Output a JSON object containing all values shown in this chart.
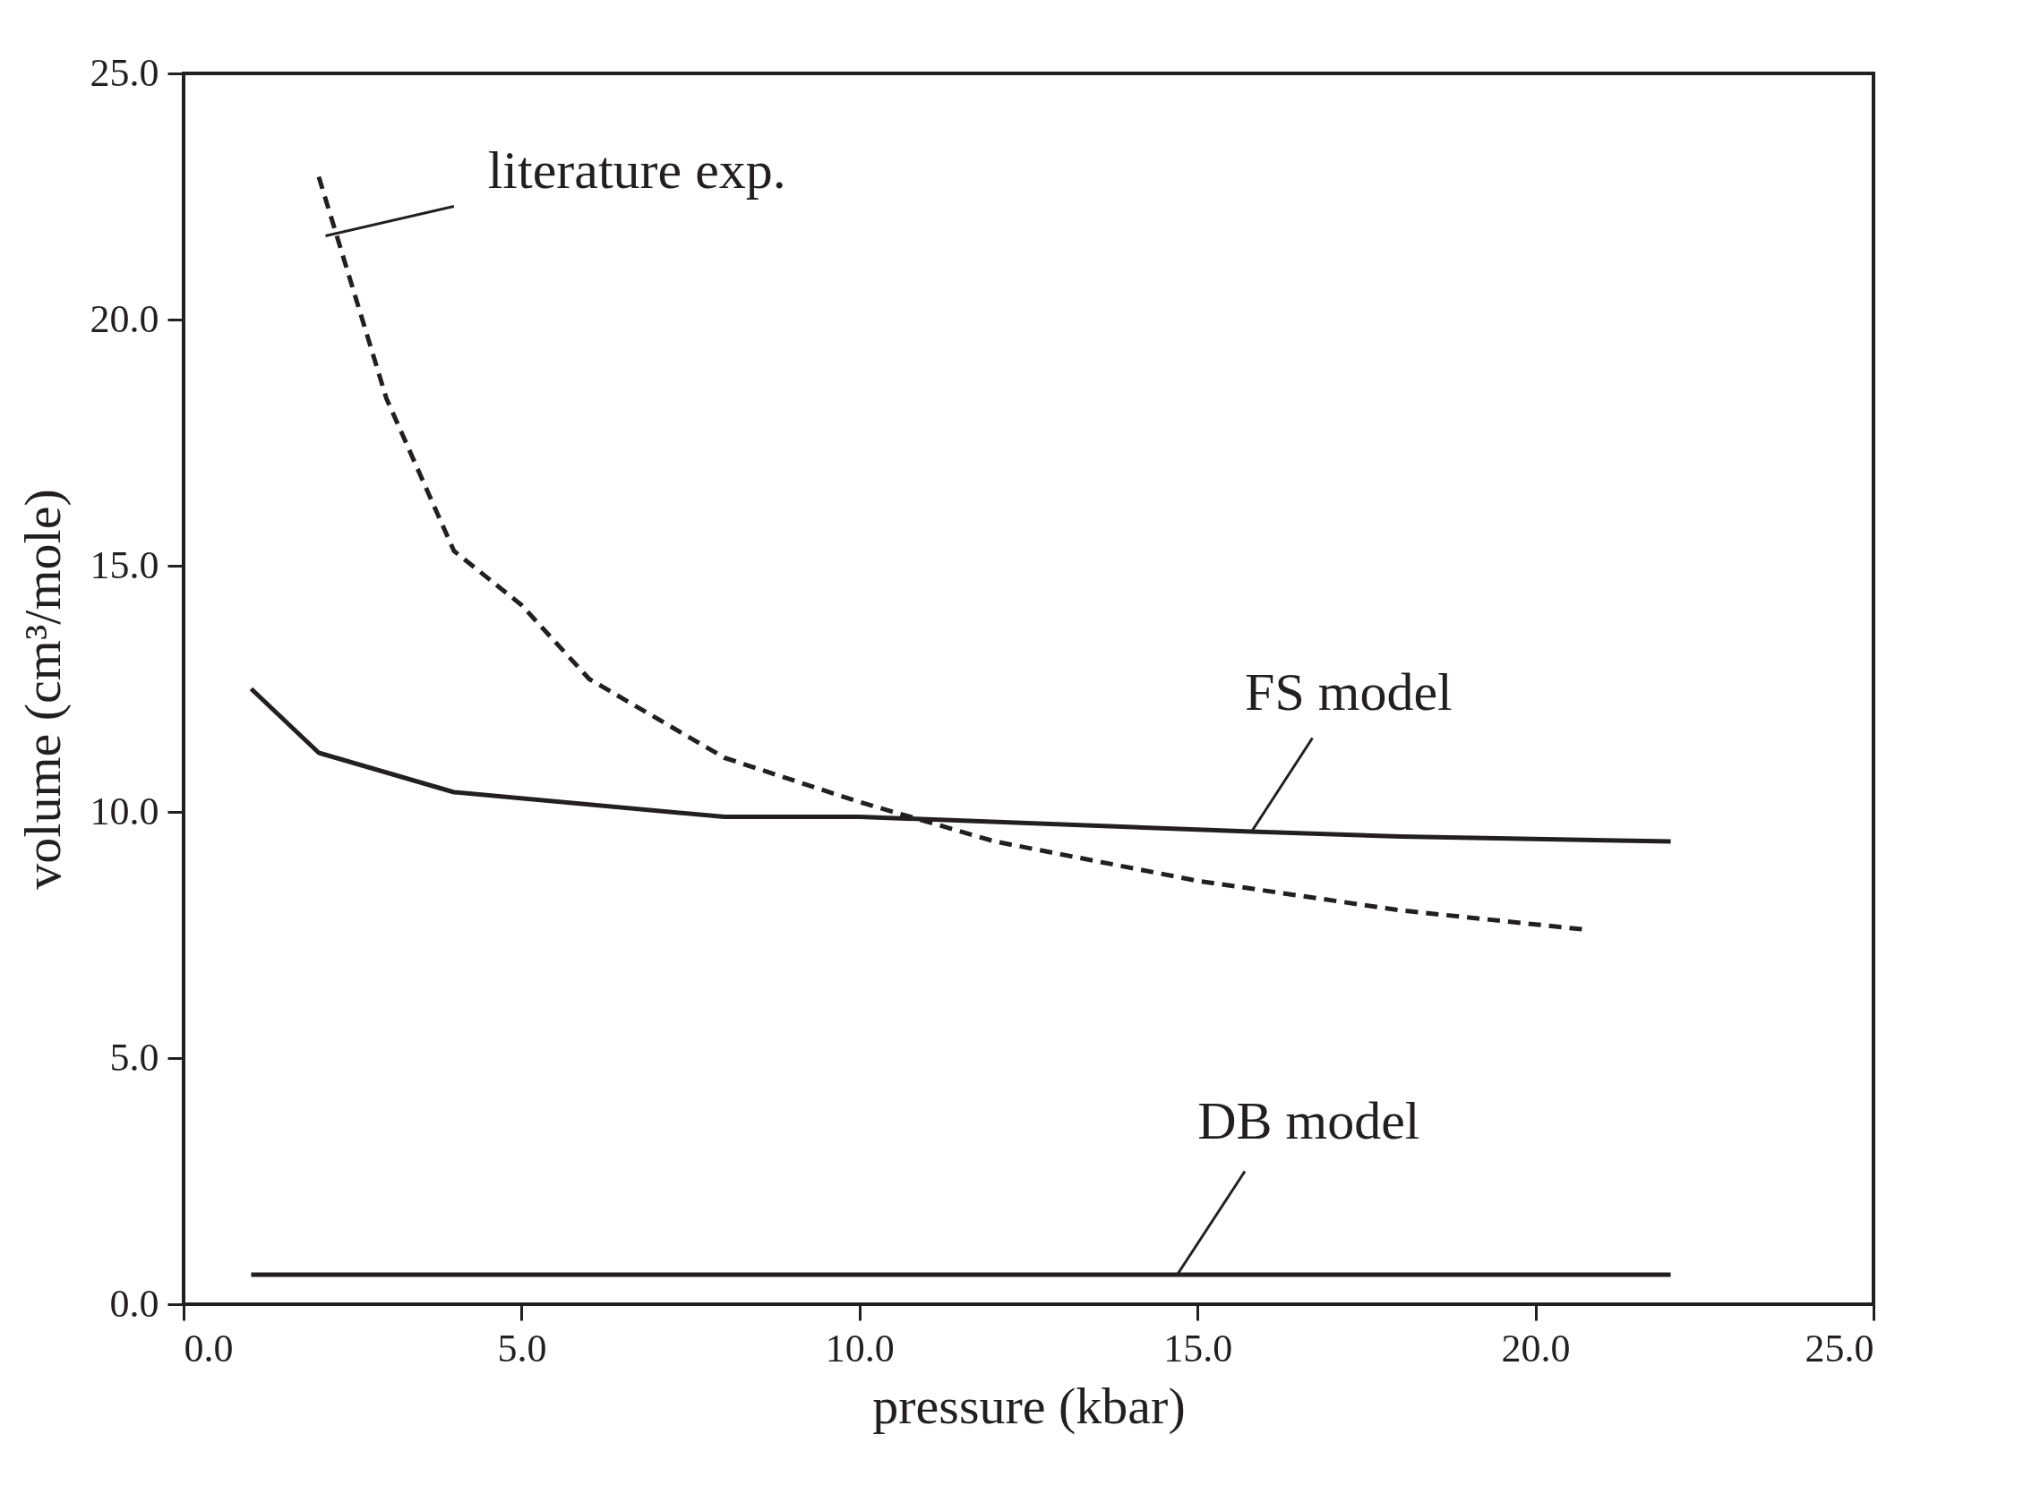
{
  "chart_data": {
    "type": "line",
    "xlabel": "pressure (kbar)",
    "ylabel": "volume (cm³/mole)",
    "xlim": [
      0,
      25
    ],
    "ylim": [
      0,
      25
    ],
    "xticks": [
      {
        "value": 0,
        "label": "0.0"
      },
      {
        "value": 5,
        "label": "5.0"
      },
      {
        "value": 10,
        "label": "10.0"
      },
      {
        "value": 15,
        "label": "15.0"
      },
      {
        "value": 20,
        "label": "20.0"
      },
      {
        "value": 25,
        "label": "25.0"
      }
    ],
    "yticks": [
      {
        "value": 0,
        "label": "0.0"
      },
      {
        "value": 5,
        "label": "5.0"
      },
      {
        "value": 10,
        "label": "10.0"
      },
      {
        "value": 15,
        "label": "15.0"
      },
      {
        "value": 20,
        "label": "20.0"
      },
      {
        "value": 25,
        "label": "25.0"
      }
    ],
    "grid": false,
    "series": [
      {
        "name": "literature exp.",
        "color": "#231f20",
        "line_style": "dashed",
        "x": [
          2,
          3,
          4,
          5,
          6,
          8,
          10,
          12,
          15,
          18,
          20.8
        ],
        "values": [
          22.9,
          18.4,
          15.3,
          14.2,
          12.7,
          11.1,
          10.2,
          9.4,
          8.6,
          8.0,
          7.6
        ]
      },
      {
        "name": "FS model",
        "color": "#231f20",
        "line_style": "solid",
        "x": [
          1,
          2,
          4,
          8,
          10,
          15.8,
          18,
          22
        ],
        "values": [
          12.5,
          11.2,
          10.4,
          9.9,
          9.9,
          9.6,
          9.5,
          9.4
        ]
      },
      {
        "name": "DB model",
        "color": "#231f20",
        "line_style": "solid",
        "x": [
          1,
          22
        ],
        "values": [
          0.6,
          0.6
        ]
      }
    ]
  }
}
